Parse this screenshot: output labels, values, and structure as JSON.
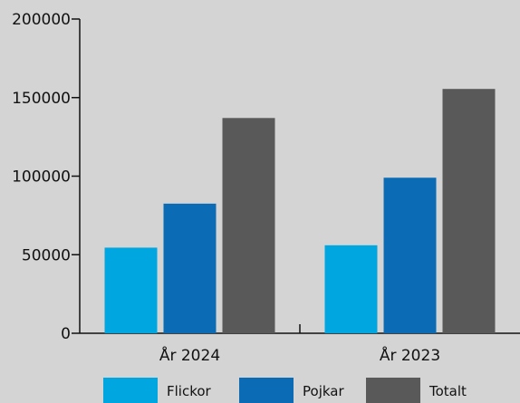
{
  "chart_data": {
    "type": "bar",
    "categories": [
      "År 2024",
      "År 2023"
    ],
    "series": [
      {
        "name": "Flickor",
        "values": [
          54500,
          56000
        ],
        "color": "#00a6e0"
      },
      {
        "name": "Pojkar",
        "values": [
          82500,
          99000
        ],
        "color": "#0b6cb5"
      },
      {
        "name": "Totalt",
        "values": [
          137000,
          155500
        ],
        "color": "#595959"
      }
    ],
    "y_ticks": [
      "0",
      "50000",
      "100000",
      "150000",
      "200000"
    ],
    "ylim": [
      0,
      200000
    ],
    "grid": false,
    "legend_position": "bottom",
    "background": "#d4d4d4",
    "axis_color": "#111111"
  }
}
